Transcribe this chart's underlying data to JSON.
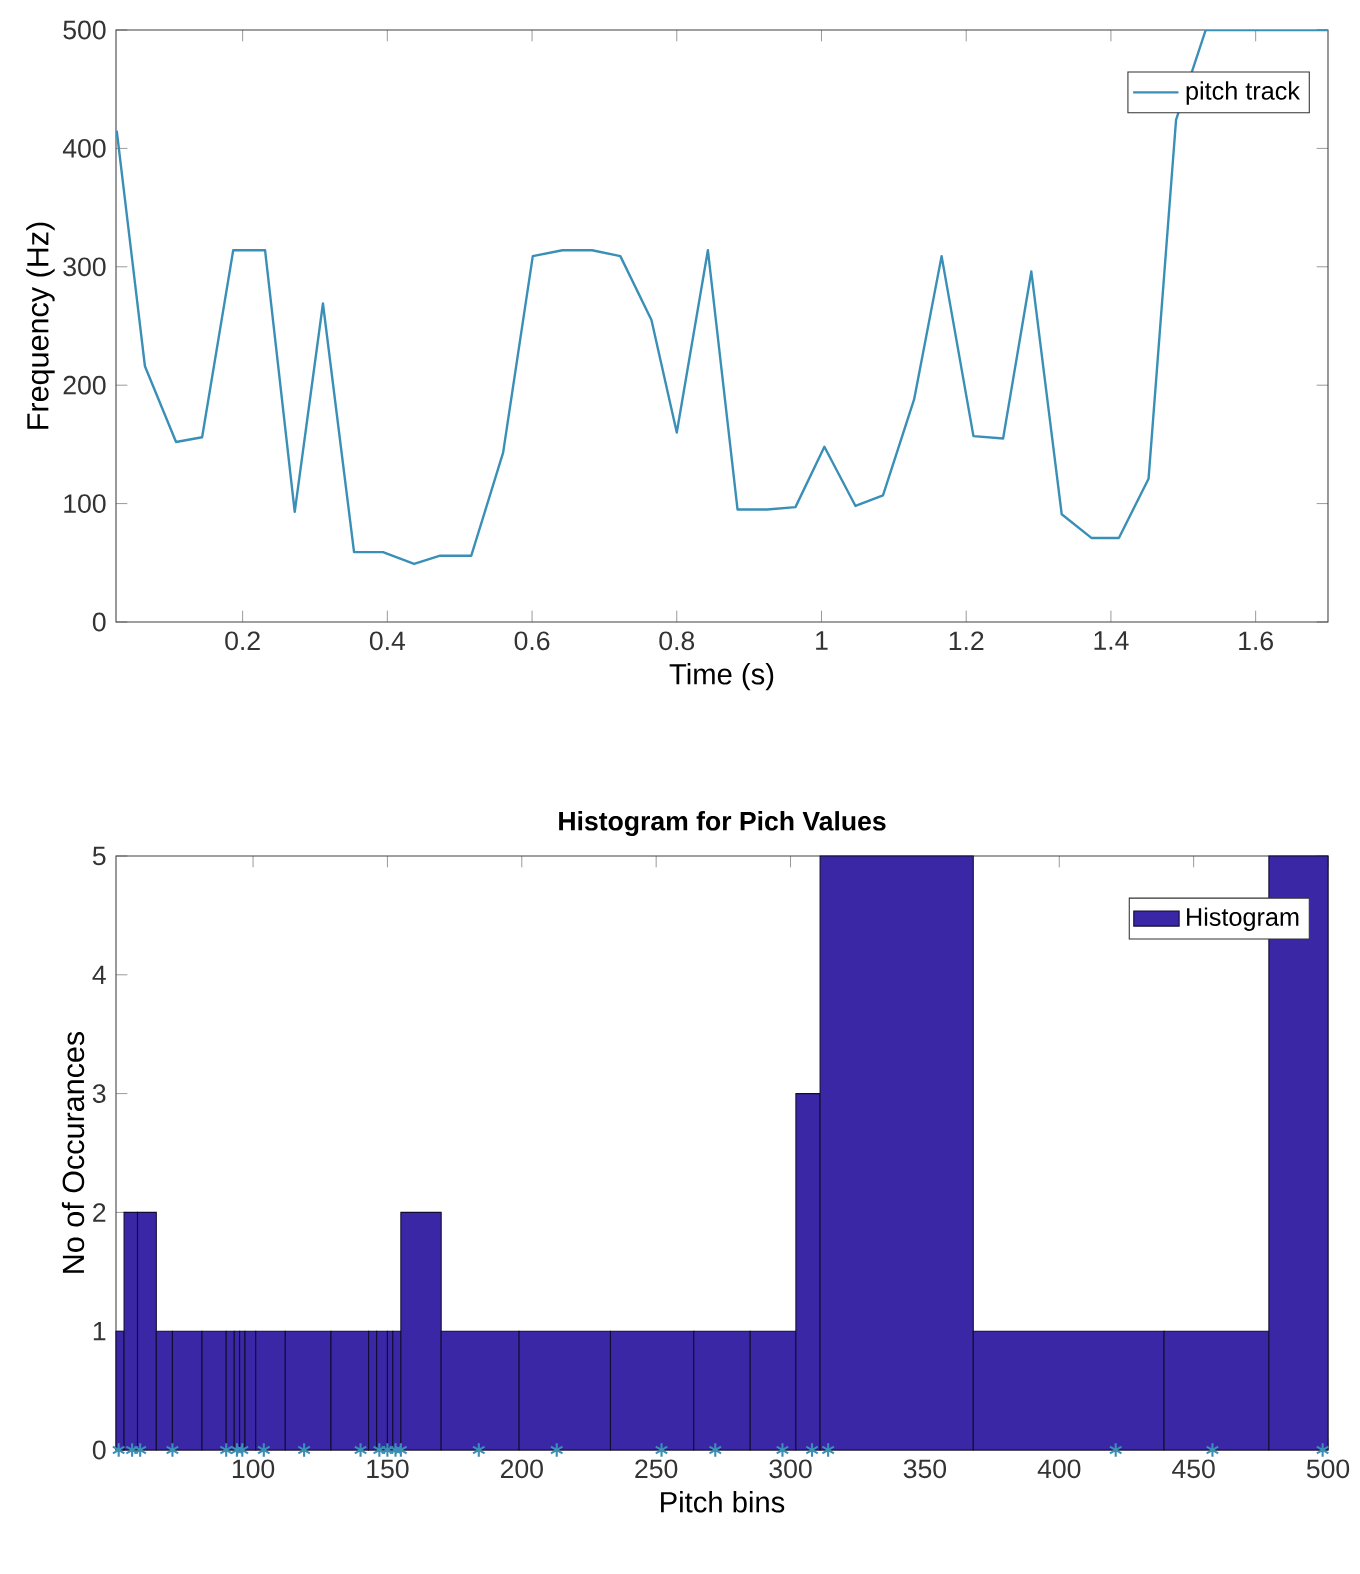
{
  "chart_data": [
    {
      "type": "line",
      "xlabel": "Time (s)",
      "ylabel": "Frequency (Hz)",
      "xlim": [
        0.025,
        1.7
      ],
      "ylim": [
        0,
        500
      ],
      "xticks": [
        0.2,
        0.4,
        0.6,
        0.8,
        1,
        1.2,
        1.4,
        1.6
      ],
      "yticks": [
        0,
        100,
        200,
        300,
        400,
        500
      ],
      "legend": "top right",
      "grid": false,
      "series": [
        {
          "name": "pitch track",
          "color": "#3a8fb7",
          "x": [
            0.026,
            0.065,
            0.108,
            0.144,
            0.187,
            0.231,
            0.272,
            0.311,
            0.354,
            0.394,
            0.437,
            0.473,
            0.516,
            0.56,
            0.601,
            0.642,
            0.683,
            0.722,
            0.765,
            0.8,
            0.843,
            0.884,
            0.925,
            0.964,
            1.004,
            1.047,
            1.085,
            1.128,
            1.166,
            1.21,
            1.251,
            1.29,
            1.332,
            1.373,
            1.411,
            1.452,
            1.49,
            1.531,
            1.7
          ],
          "values": [
            415,
            216,
            152,
            156,
            314,
            314,
            93,
            269,
            59,
            59,
            49,
            56,
            56,
            143,
            309,
            314,
            314,
            309,
            255,
            160,
            314,
            95,
            95,
            97,
            148,
            98,
            107,
            188,
            309,
            157,
            155,
            296,
            91,
            71,
            71,
            121,
            424,
            500,
            500
          ]
        }
      ]
    },
    {
      "type": "histogram",
      "title": "Histogram for Pich Values",
      "xlabel": "Pitch bins",
      "ylabel": "No of Occurances",
      "xlim": [
        49,
        500
      ],
      "ylim": [
        0,
        5
      ],
      "xticks": [
        100,
        150,
        200,
        250,
        300,
        350,
        400,
        450,
        500
      ],
      "yticks": [
        0,
        1,
        2,
        3,
        4,
        5
      ],
      "legend": "top right",
      "grid": false,
      "bins": [
        49,
        52,
        57,
        64,
        70,
        81,
        90,
        93,
        95,
        97,
        101,
        112,
        129,
        143,
        146,
        150,
        152,
        155,
        170,
        199,
        233,
        264,
        285,
        302,
        311,
        368,
        439,
        478,
        500
      ],
      "series": [
        {
          "name": "Histogram",
          "color": "#3a27a5",
          "values": [
            1,
            2,
            2,
            1,
            1,
            1,
            1,
            1,
            1,
            1,
            1,
            1,
            1,
            1,
            1,
            1,
            1,
            2,
            1,
            1,
            1,
            1,
            1,
            3,
            5,
            1,
            1,
            5
          ]
        },
        {
          "type": "scatter",
          "marker": "cross",
          "color": "#3a8fb7",
          "x": [
            50,
            55,
            58,
            70,
            90,
            94,
            96,
            104,
            119,
            140,
            147,
            150,
            153,
            155,
            184,
            213,
            252,
            272,
            297,
            308,
            314,
            421,
            457,
            498
          ],
          "values": [
            0,
            0,
            0,
            0,
            0,
            0,
            0,
            0,
            0,
            0,
            0,
            0,
            0,
            0,
            0,
            0,
            0,
            0,
            0,
            0,
            0,
            0,
            0,
            0
          ]
        }
      ]
    }
  ]
}
